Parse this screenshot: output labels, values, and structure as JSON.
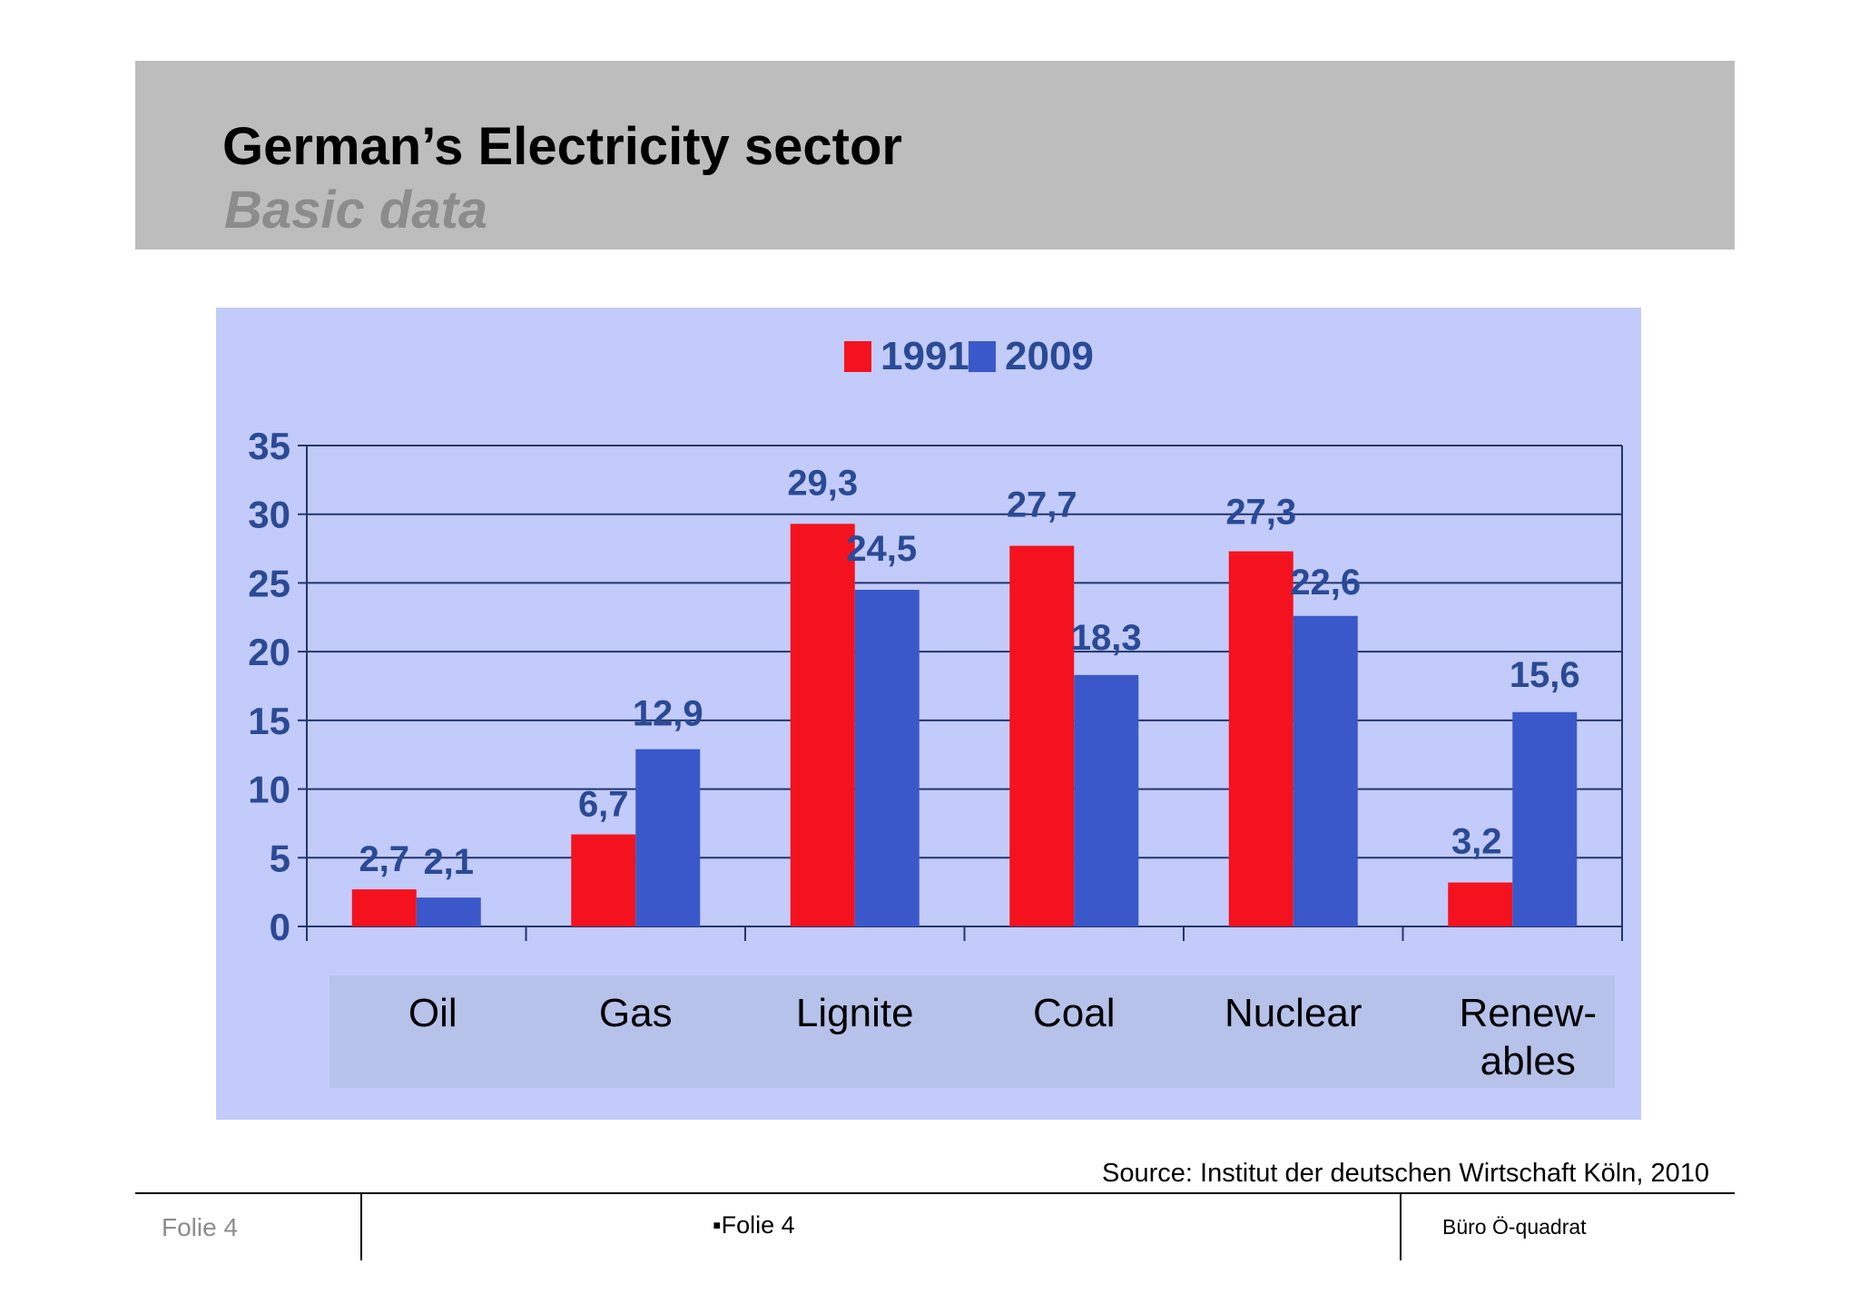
{
  "header": {
    "title": "German’s Electricity sector",
    "subtitle": "Basic data"
  },
  "chart_data": {
    "type": "bar",
    "categories": [
      "Oil",
      "Gas",
      "Lignite",
      "Coal",
      "Nuclear",
      "Renew-\nables"
    ],
    "series": [
      {
        "name": "1991",
        "values": [
          2.7,
          6.7,
          29.3,
          27.7,
          27.3,
          3.2
        ],
        "labels": [
          "2,7",
          "6,7",
          "29,3",
          "27,7",
          "27,3",
          "3,2"
        ],
        "color": "#f4121f"
      },
      {
        "name": "2009",
        "values": [
          2.1,
          12.9,
          24.5,
          18.3,
          22.6,
          15.6
        ],
        "labels": [
          "2,1",
          "12,9",
          "24,5",
          "18,3",
          "22,6",
          "15,6"
        ],
        "color": "#3a58c9"
      }
    ],
    "ylim": [
      0,
      35
    ],
    "yticks": [
      "0",
      "5",
      "10",
      "15",
      "20",
      "25",
      "30",
      "35"
    ],
    "grid": true,
    "legend": "top-center",
    "axis_color": "#23356e",
    "label_color": "#2a4a96"
  },
  "source": "Source: Institut der deutschen Wirtschaft Köln, 2010",
  "footer": {
    "left": "Folie 4",
    "center": "▪Folie 4",
    "right": "Büro Ö-quadrat"
  }
}
